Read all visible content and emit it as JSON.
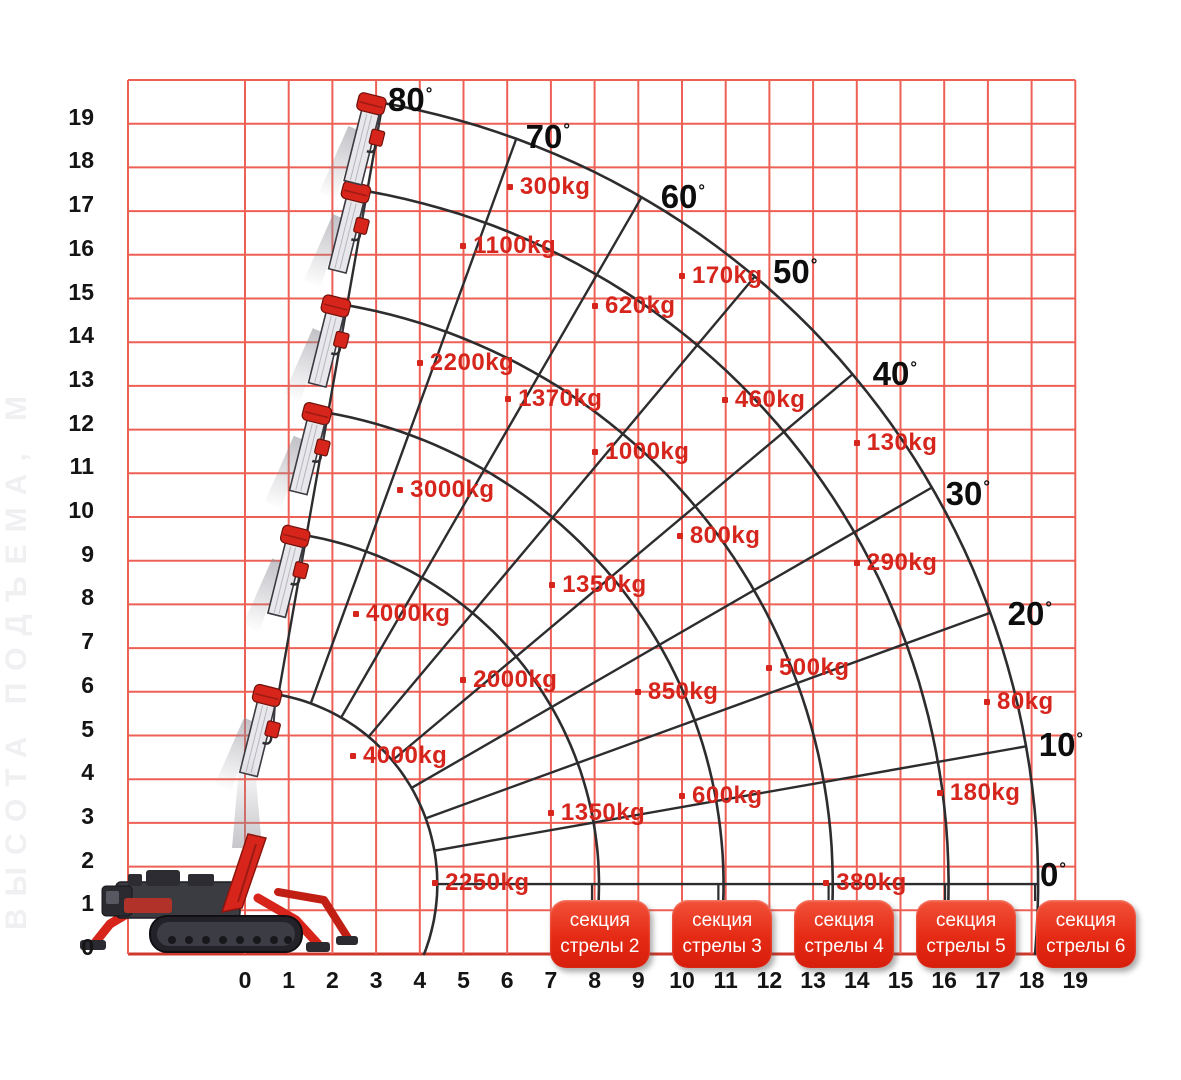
{
  "watermarks": {
    "left_vertical": "ВЫСОТА ПОДЪЕМА, М"
  },
  "axes": {
    "x_ticks": [
      "0",
      "1",
      "2",
      "3",
      "4",
      "5",
      "6",
      "7",
      "8",
      "9",
      "10",
      "11",
      "12",
      "13",
      "14",
      "15",
      "16",
      "17",
      "18",
      "19"
    ],
    "y_ticks": [
      "0",
      "1",
      "2",
      "3",
      "4",
      "5",
      "6",
      "7",
      "8",
      "9",
      "10",
      "11",
      "12",
      "13",
      "14",
      "15",
      "16",
      "17",
      "18",
      "19"
    ]
  },
  "chart_data": {
    "type": "scatter",
    "title": "",
    "x_range": [
      -2.68,
      19
    ],
    "y_range": [
      0,
      20
    ],
    "grid": true,
    "boom_pivot": {
      "x": 0,
      "y": 1.6
    },
    "boom_angles_deg": [
      0,
      10,
      20,
      30,
      40,
      50,
      60,
      70,
      80
    ],
    "angle_labels": [
      {
        "text": "80",
        "x": 3.78,
        "y": 19.54
      },
      {
        "text": "70",
        "x": 6.93,
        "y": 18.7
      },
      {
        "text": "60",
        "x": 10.02,
        "y": 17.32
      },
      {
        "text": "50",
        "x": 12.59,
        "y": 15.61
      },
      {
        "text": "40",
        "x": 14.87,
        "y": 13.27
      },
      {
        "text": "30",
        "x": 16.54,
        "y": 10.53
      },
      {
        "text": "20",
        "x": 17.96,
        "y": 7.78
      },
      {
        "text": "10",
        "x": 18.67,
        "y": 4.78
      },
      {
        "text": "0",
        "x": 18.49,
        "y": 1.81
      }
    ],
    "boom_section_arcs": [
      {
        "section": 1,
        "radius_m": 4.4
      },
      {
        "section": 2,
        "radius_m": 8.1
      },
      {
        "section": 3,
        "radius_m": 10.95
      },
      {
        "section": 4,
        "radius_m": 13.45
      },
      {
        "section": 5,
        "radius_m": 16.1
      },
      {
        "section": 6,
        "radius_m": 18.15
      }
    ],
    "capacity_points": [
      {
        "label": "300kg",
        "x": 6.06,
        "y": 17.55
      },
      {
        "label": "1100kg",
        "x": 4.99,
        "y": 16.2
      },
      {
        "label": "170kg",
        "x": 10.0,
        "y": 15.51
      },
      {
        "label": "620kg",
        "x": 8.01,
        "y": 14.83
      },
      {
        "label": "2200kg",
        "x": 4.0,
        "y": 13.52
      },
      {
        "label": "1370kg",
        "x": 6.02,
        "y": 12.7
      },
      {
        "label": "460kg",
        "x": 10.98,
        "y": 12.68
      },
      {
        "label": "130kg",
        "x": 14.0,
        "y": 11.69
      },
      {
        "label": "1000kg",
        "x": 8.01,
        "y": 11.49
      },
      {
        "label": "3000kg",
        "x": 3.55,
        "y": 10.62
      },
      {
        "label": "800kg",
        "x": 9.95,
        "y": 9.56
      },
      {
        "label": "290kg",
        "x": 14.0,
        "y": 8.95
      },
      {
        "label": "1350kg",
        "x": 7.03,
        "y": 8.44
      },
      {
        "label": "4000kg",
        "x": 2.54,
        "y": 7.78
      },
      {
        "label": "500kg",
        "x": 11.99,
        "y": 6.54
      },
      {
        "label": "2000kg",
        "x": 4.99,
        "y": 6.27
      },
      {
        "label": "850kg",
        "x": 8.99,
        "y": 6.0
      },
      {
        "label": "80kg",
        "x": 16.98,
        "y": 5.77
      },
      {
        "label": "4000kg",
        "x": 2.47,
        "y": 4.53
      },
      {
        "label": "180kg",
        "x": 15.9,
        "y": 3.68
      },
      {
        "label": "600kg",
        "x": 10.0,
        "y": 3.62
      },
      {
        "label": "1350kg",
        "x": 7.0,
        "y": 3.23
      },
      {
        "label": "2250kg",
        "x": 4.35,
        "y": 1.62
      },
      {
        "label": "380kg",
        "x": 13.3,
        "y": 1.62
      }
    ]
  },
  "buttons": [
    {
      "line1": "секция",
      "line2": "стрелы 2",
      "at_x_m": 8.12
    },
    {
      "line1": "секция",
      "line2": "стрелы 3",
      "at_x_m": 10.92
    },
    {
      "line1": "секция",
      "line2": "стрелы 4",
      "at_x_m": 13.71
    },
    {
      "line1": "секция",
      "line2": "стрелы 5",
      "at_x_m": 16.5
    },
    {
      "line1": "секция",
      "line2": "стрелы 6",
      "at_x_m": 19.24
    }
  ],
  "colors": {
    "grid": "#ee6055",
    "grid_baseline": "#cf382c",
    "line": "#2d2d2f",
    "capacity": "#d5251c",
    "button_bg": "#e42713",
    "button_text": "#ffffff",
    "axis_text": "#141414",
    "crane_red": "#d7251b"
  }
}
